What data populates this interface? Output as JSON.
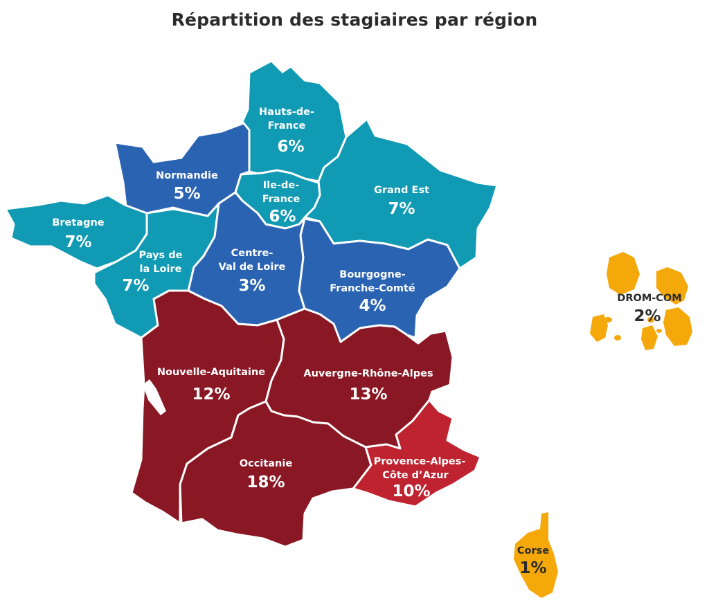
{
  "title": "Répartition des stagiaires par région",
  "colors": {
    "teal": "#109ab3",
    "blue": "#2b63b3",
    "dark_red": "#8a1724",
    "red": "#bf2330",
    "orange": "#f4a80a"
  },
  "regions": {
    "hauts_de_france": {
      "name_1": "Hauts-de-",
      "name_2": "France",
      "value": "6%"
    },
    "normandie": {
      "name_1": "Normandie",
      "value": "5%"
    },
    "ile_de_france": {
      "name_1": "Ile-de-",
      "name_2": "France",
      "value": "6%"
    },
    "grand_est": {
      "name_1": "Grand Est",
      "value": "7%"
    },
    "bretagne": {
      "name_1": "Bretagne",
      "value": "7%"
    },
    "pays_de_la_loire": {
      "name_1": "Pays de",
      "name_2": "la Loire",
      "value": "7%"
    },
    "centre_val_de_loire": {
      "name_1": "Centre-",
      "name_2": "Val de Loire",
      "value": "3%"
    },
    "bourgogne_franche_comte": {
      "name_1": "Bourgogne-",
      "name_2": "Franche-Comté",
      "value": "4%"
    },
    "nouvelle_aquitaine": {
      "name_1": "Nouvelle-Aquitaine",
      "value": "12%"
    },
    "auvergne_rhone_alpes": {
      "name_1": "Auvergne-Rhône-Alpes",
      "value": "13%"
    },
    "occitanie": {
      "name_1": "Occitanie",
      "value": "18%"
    },
    "paca": {
      "name_1": "Provence-Alpes-",
      "name_2": "Côte d’Azur",
      "value": "10%"
    },
    "drom_com": {
      "name_1": "DROM-COM",
      "value": "2%"
    },
    "corse": {
      "name_1": "Corse",
      "value": "1%"
    }
  }
}
